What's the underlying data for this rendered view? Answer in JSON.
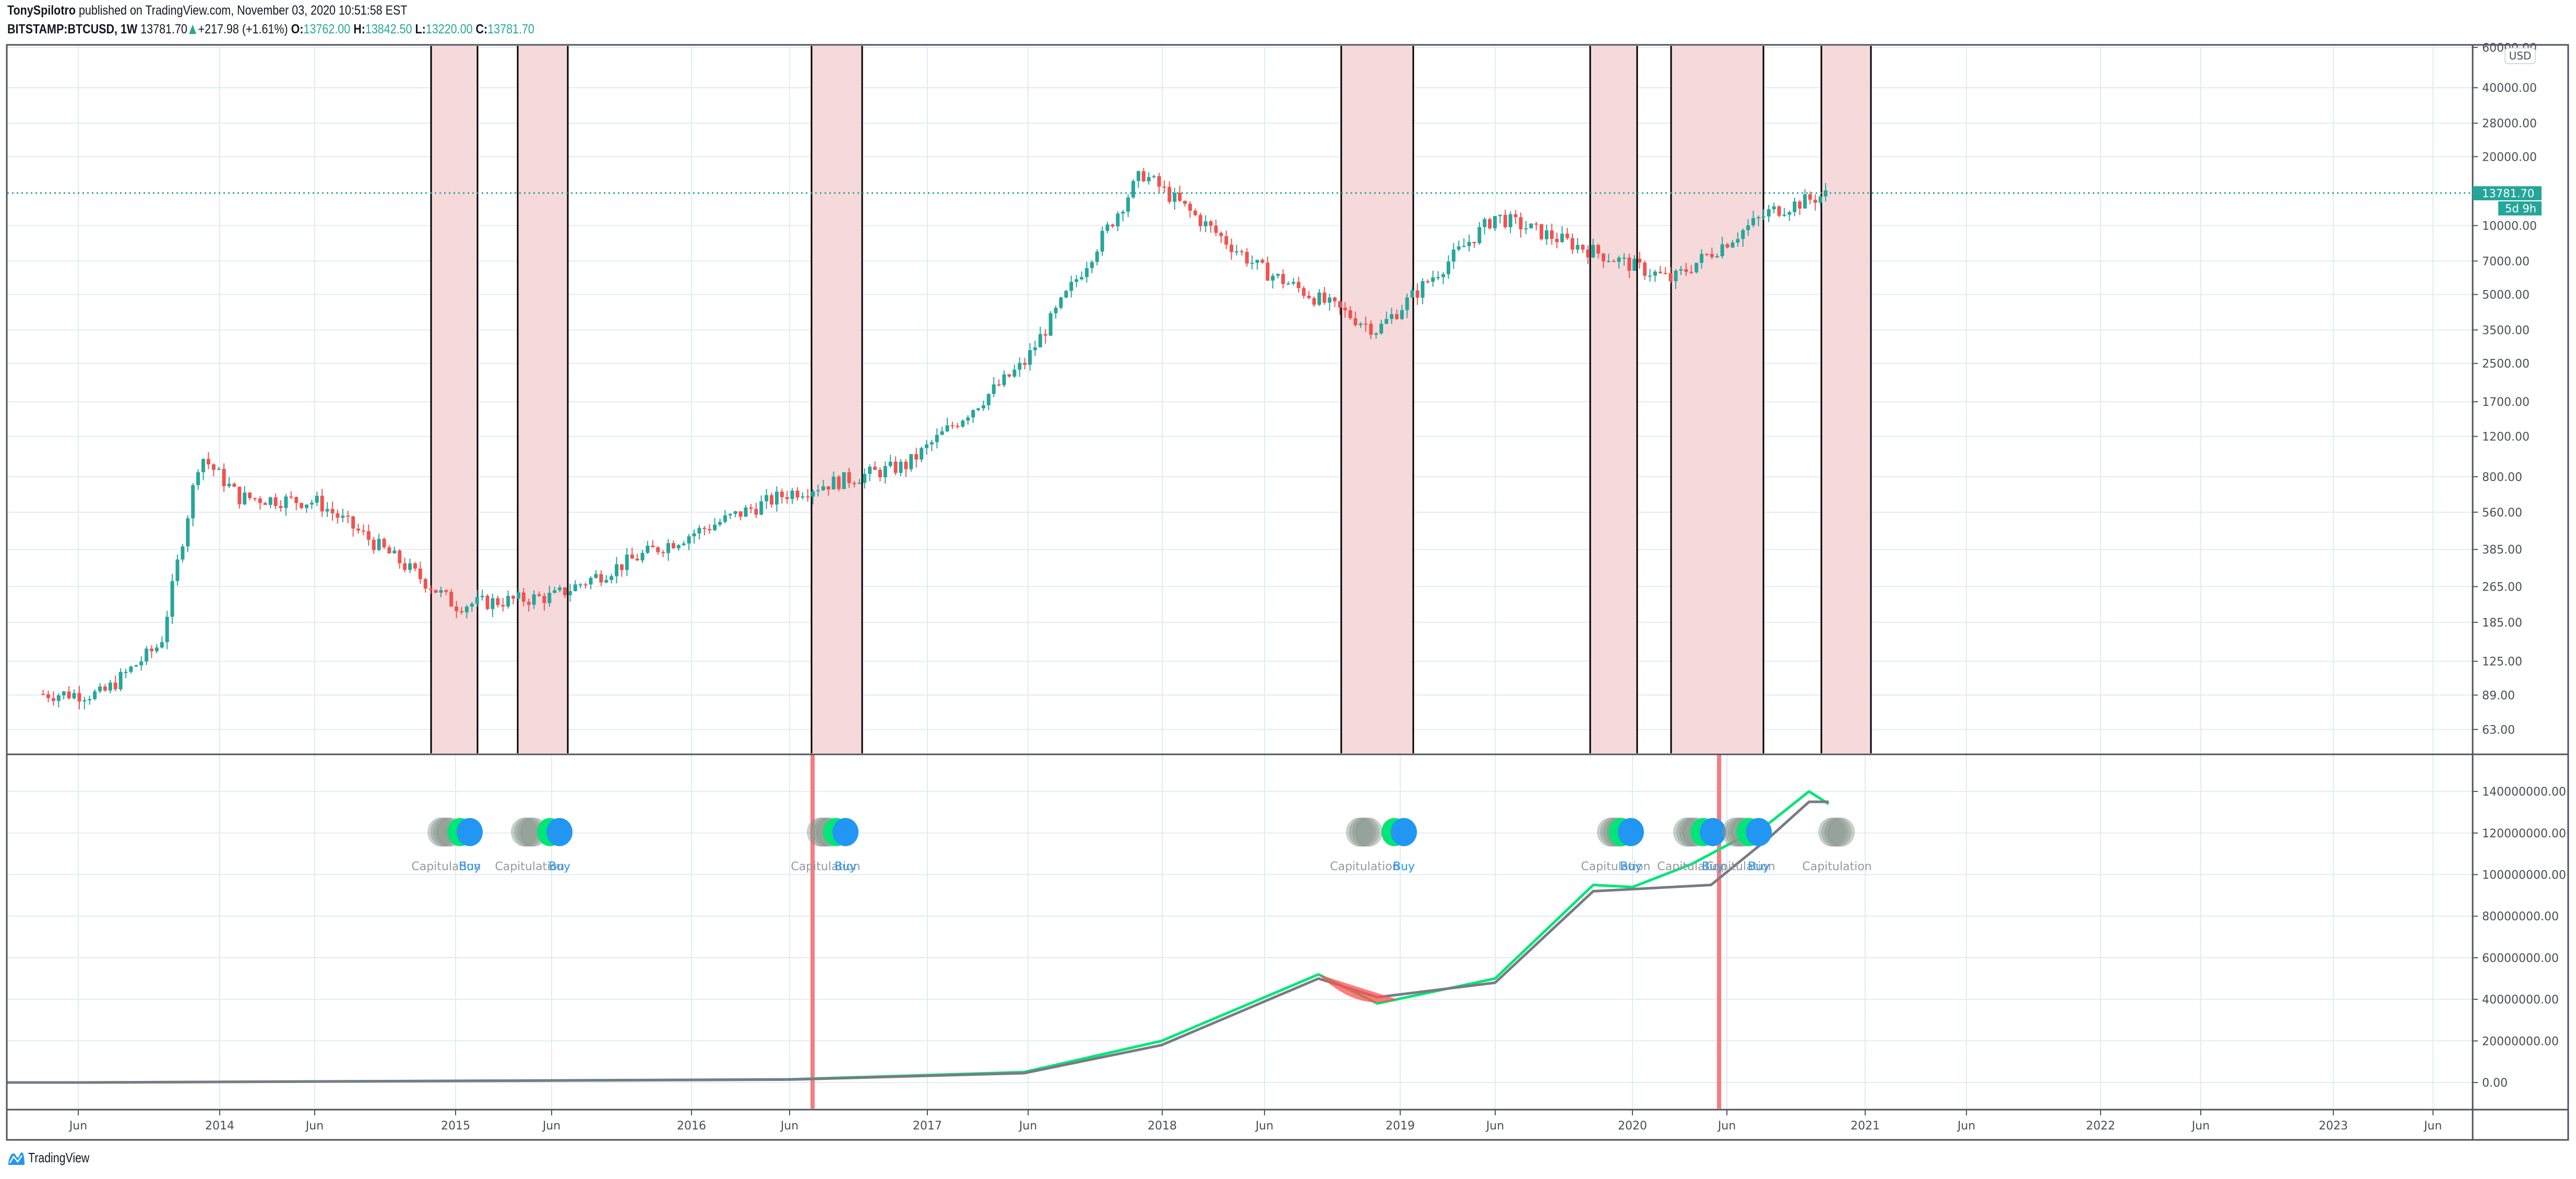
{
  "header": {
    "author": "TonySpilotro",
    "published_text": "published on TradingView.com, November 03, 2020 10:51:58 EST",
    "symbol": "BITSTAMP:BTCUSD, 1W",
    "last_price": "13781.70",
    "change": "+217.98 (+1.61%)",
    "open_label": "O:",
    "open": "13762.00",
    "high_label": "H:",
    "high": "13842.50",
    "low_label": "L:",
    "low": "13220.00",
    "close_label": "C:",
    "close": "13781.70"
  },
  "price_axis": {
    "currency_badge": "USD",
    "ticks": [
      "60000.00",
      "40000.00",
      "28000.00",
      "20000.00",
      "10000.00",
      "7000.00",
      "5000.00",
      "3500.00",
      "2500.00",
      "1700.00",
      "1200.00",
      "800.00",
      "560.00",
      "385.00",
      "265.00",
      "185.00",
      "125.00",
      "89.00",
      "63.00"
    ],
    "last_price_label": "13781.70",
    "countdown_label": "5d 9h"
  },
  "indicator_axis": {
    "ticks": [
      "140000000.00",
      "120000000.00",
      "100000000.00",
      "80000000.00",
      "60000000.00",
      "40000000.00",
      "20000000.00",
      "0.00"
    ]
  },
  "time_axis": {
    "labels": [
      "Jun",
      "2014",
      "Jun",
      "2015",
      "Jun",
      "2016",
      "Jun",
      "2017",
      "Jun",
      "2018",
      "Jun",
      "2019",
      "Jun",
      "2020",
      "Jun",
      "2021",
      "Jun",
      "2022",
      "Jun",
      "2023",
      "Jun"
    ]
  },
  "signals": [
    {
      "capitulation": "Capitulation",
      "buy": "Buy"
    },
    {
      "capitulation": "Capitulation",
      "buy": "Buy"
    },
    {
      "capitulation": "Capitulation",
      "buy": "Buy"
    },
    {
      "capitulation": "Capitulation",
      "buy": "Buy"
    },
    {
      "capitulation": "Capitulation",
      "buy": "Buy"
    },
    {
      "capitulation": "Capitulation",
      "buy": "Buy"
    },
    {
      "capitulation": "Capitulation",
      "buy": "Buy"
    },
    {
      "capitulation": "Capitulation",
      "buy": ""
    }
  ],
  "footer": {
    "brand": "TradingView"
  },
  "colors": {
    "up": "#26a69a",
    "down": "#ef5350",
    "shade": "#f5d7d9",
    "fast_line": "#00e676",
    "slow_line": "#787b86",
    "capitulation": "#9aa59f",
    "buy": "#2196f3",
    "grid": "#e1ecf2",
    "axis_text": "#4a4d57",
    "border": "#50535e"
  },
  "chart_data": [
    {
      "type": "candlestick",
      "title": "BITSTAMP:BTCUSD, 1W",
      "ylabel": "USD",
      "yscale": "log",
      "ylim": [
        50,
        60000
      ],
      "x_ticks": [
        "Jun 2013",
        "2014",
        "Jun 2014",
        "2015",
        "Jun 2015",
        "2016",
        "Jun 2016",
        "2017",
        "Jun 2017",
        "2018",
        "Jun 2018",
        "2019",
        "Jun 2019",
        "2020",
        "Jun 2020",
        "2021",
        "Jun 2021",
        "2022",
        "Jun 2022",
        "2023",
        "Jun 2023"
      ],
      "y_ticks": [
        60000,
        40000,
        28000,
        20000,
        10000,
        7000,
        5000,
        3500,
        2500,
        1700,
        1200,
        800,
        560,
        385,
        265,
        185,
        125,
        89,
        63
      ],
      "last": {
        "open": 13762.0,
        "high": 13842.5,
        "low": 13220.0,
        "close": 13781.7,
        "change": 217.98,
        "change_pct": 1.61
      },
      "approx_path": [
        {
          "date": "2013-04",
          "close": 90
        },
        {
          "date": "2013-07",
          "close": 90
        },
        {
          "date": "2013-10",
          "close": 150
        },
        {
          "date": "2013-12",
          "close": 1000
        },
        {
          "date": "2014-02",
          "close": 650
        },
        {
          "date": "2014-06",
          "close": 620
        },
        {
          "date": "2014-10",
          "close": 350
        },
        {
          "date": "2015-01",
          "close": 220
        },
        {
          "date": "2015-06",
          "close": 240
        },
        {
          "date": "2015-11",
          "close": 380
        },
        {
          "date": "2016-06",
          "close": 680
        },
        {
          "date": "2016-12",
          "close": 900
        },
        {
          "date": "2017-06",
          "close": 2500
        },
        {
          "date": "2017-12",
          "close": 17000
        },
        {
          "date": "2018-06",
          "close": 6500
        },
        {
          "date": "2018-12",
          "close": 3500
        },
        {
          "date": "2019-06",
          "close": 11000
        },
        {
          "date": "2019-12",
          "close": 7200
        },
        {
          "date": "2020-03",
          "close": 5800
        },
        {
          "date": "2020-08",
          "close": 11500
        },
        {
          "date": "2020-11",
          "close": 13781.7
        }
      ],
      "shaded_regions": [
        {
          "start": "2014-12",
          "end": "2015-02"
        },
        {
          "start": "2015-04",
          "end": "2015-06"
        },
        {
          "start": "2016-06",
          "end": "2016-08"
        },
        {
          "start": "2018-08",
          "end": "2018-11"
        },
        {
          "start": "2019-08",
          "end": "2019-10"
        },
        {
          "start": "2020-02",
          "end": "2020-06"
        },
        {
          "start": "2020-09",
          "end": "2020-11"
        }
      ]
    },
    {
      "type": "line",
      "title": "Capitulation / Buy indicator",
      "yscale": "linear",
      "ylim": [
        -10000000,
        150000000
      ],
      "y_ticks": [
        140000000,
        120000000,
        100000000,
        80000000,
        60000000,
        40000000,
        20000000,
        0
      ],
      "series": [
        {
          "name": "fast",
          "color": "#00e676",
          "approx_points": [
            [
              "2013-06",
              0
            ],
            [
              "2016-06",
              1500000
            ],
            [
              "2017-06",
              5000000
            ],
            [
              "2018-01",
              20000000
            ],
            [
              "2018-09",
              52000000
            ],
            [
              "2018-12",
              38000000
            ],
            [
              "2019-06",
              50000000
            ],
            [
              "2019-11",
              95000000
            ],
            [
              "2020-01",
              94000000
            ],
            [
              "2020-04",
              105000000
            ],
            [
              "2020-08",
              125000000
            ],
            [
              "2020-10",
              140000000
            ],
            [
              "2020-11",
              134000000
            ]
          ]
        },
        {
          "name": "slow",
          "color": "#787b86",
          "approx_points": [
            [
              "2013-06",
              0
            ],
            [
              "2016-06",
              1400000
            ],
            [
              "2017-06",
              4500000
            ],
            [
              "2018-01",
              18000000
            ],
            [
              "2018-09",
              50000000
            ],
            [
              "2018-12",
              41000000
            ],
            [
              "2019-06",
              48000000
            ],
            [
              "2019-11",
              92000000
            ],
            [
              "2020-01",
              93000000
            ],
            [
              "2020-05",
              95000000
            ],
            [
              "2020-08",
              118000000
            ],
            [
              "2020-10",
              135000000
            ],
            [
              "2020-11",
              135000000
            ]
          ]
        }
      ],
      "vertical_markers": [
        "2016-07",
        "2020-05"
      ],
      "signal_markers": [
        {
          "date": "2014-12",
          "labels": [
            "Capitulation",
            "Buy"
          ]
        },
        {
          "date": "2015-05",
          "labels": [
            "Capitulation",
            "Buy"
          ]
        },
        {
          "date": "2016-07",
          "labels": [
            "Capitulation",
            "Buy"
          ]
        },
        {
          "date": "2018-10",
          "labels": [
            "Capitulation",
            "Buy"
          ]
        },
        {
          "date": "2019-10",
          "labels": [
            "Capitulation",
            "Buy"
          ]
        },
        {
          "date": "2020-04",
          "labels": [
            "Capitulation",
            "Buy"
          ]
        },
        {
          "date": "2020-06",
          "labels": [
            "Capitulation",
            "Buy"
          ]
        },
        {
          "date": "2020-11",
          "labels": [
            "Capitulation"
          ]
        }
      ]
    }
  ]
}
